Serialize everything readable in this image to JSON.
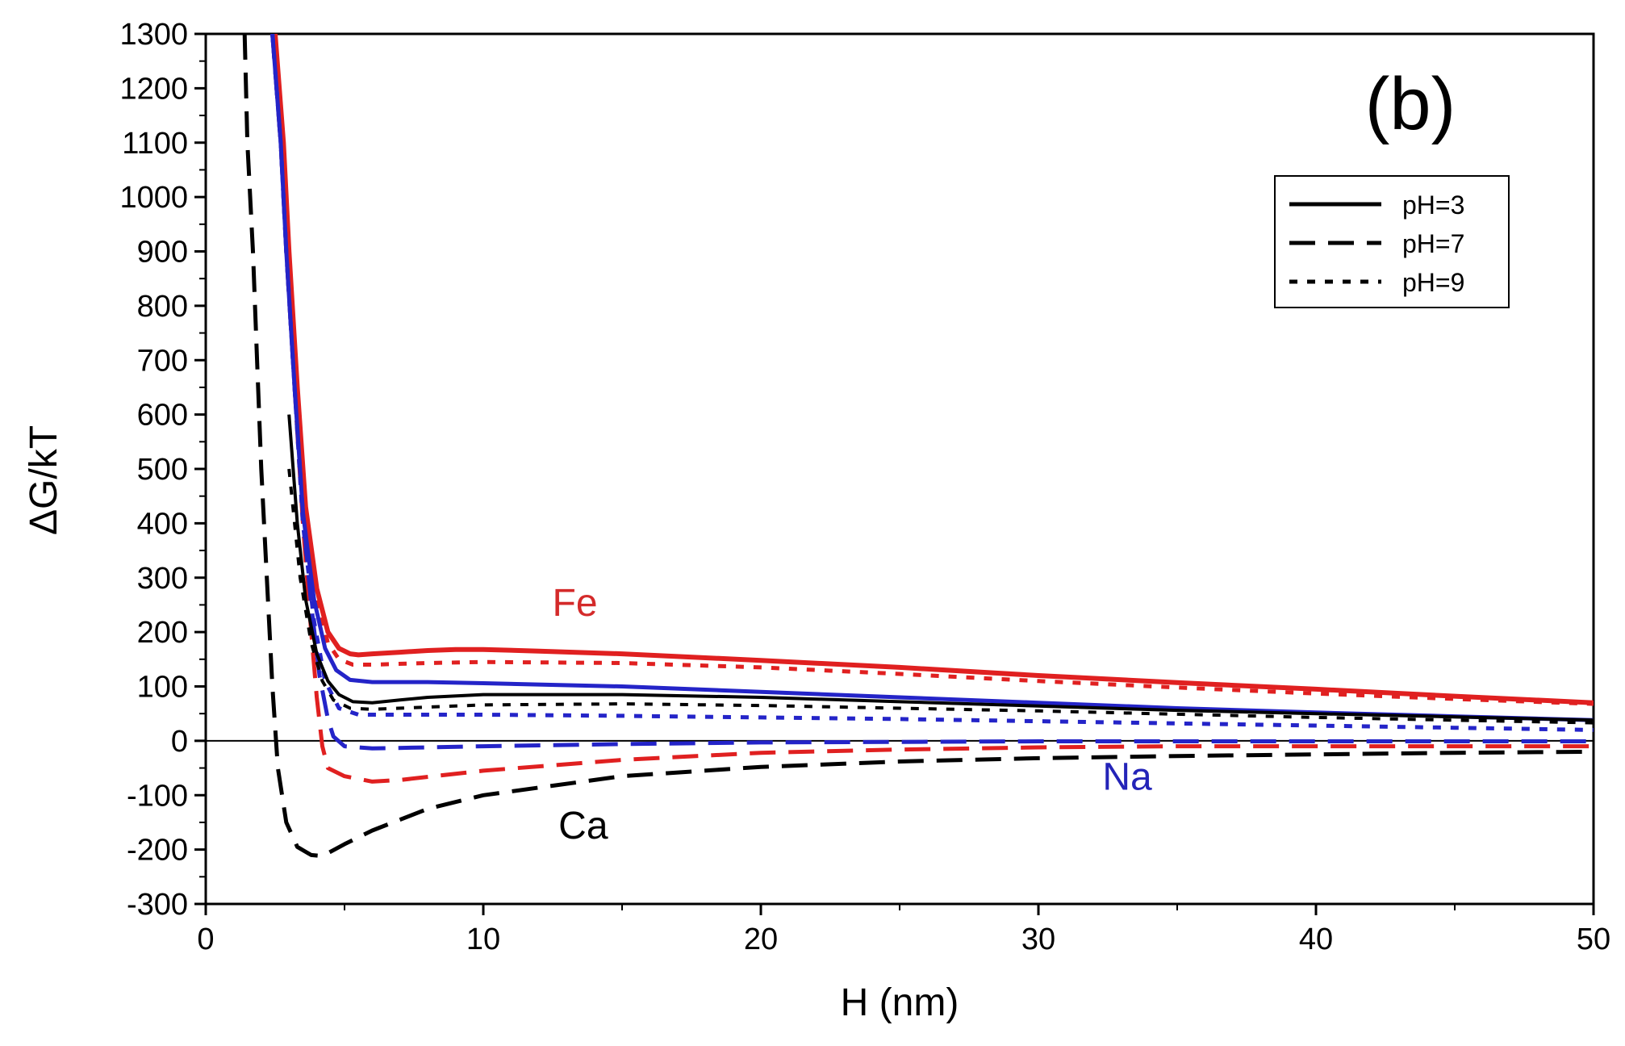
{
  "chart_data": {
    "type": "line",
    "title": "",
    "panel_label": "(b)",
    "xlabel": "H (nm)",
    "ylabel": "ΔG/kT",
    "xlim": [
      0,
      50
    ],
    "ylim": [
      -300,
      1300
    ],
    "x_ticks": [
      0,
      10,
      20,
      30,
      40,
      50
    ],
    "y_ticks": [
      -300,
      -200,
      -100,
      0,
      100,
      200,
      300,
      400,
      500,
      600,
      700,
      800,
      900,
      1000,
      1100,
      1200,
      1300
    ],
    "x_tick_labels": [
      "0",
      "10",
      "20",
      "30",
      "40",
      "50"
    ],
    "y_tick_labels": [
      "-300",
      "-200",
      "-100",
      "0",
      "100",
      "200",
      "300",
      "400",
      "500",
      "600",
      "700",
      "800",
      "900",
      "1000",
      "1100",
      "1200",
      "1300"
    ],
    "grid": false,
    "zero_line": true,
    "legend": {
      "placement": "top-right",
      "entries": [
        {
          "label": "pH=3",
          "style": "solid"
        },
        {
          "label": "pH=7",
          "style": "dashed"
        },
        {
          "label": "pH=9",
          "style": "dotted"
        }
      ]
    },
    "annotations": [
      {
        "text": "Fe",
        "color": "#d42a2a",
        "x": 13.3,
        "y": 230
      },
      {
        "text": "Na",
        "color": "#2424b8",
        "x": 33.2,
        "y": -90
      },
      {
        "text": "Ca",
        "color": "#000000",
        "x": 13.6,
        "y": -180
      }
    ],
    "series": [
      {
        "name": "Fe pH=3",
        "ion": "Fe",
        "ph": "pH=3",
        "style": "solid",
        "color": "#e02020",
        "width": 6,
        "points": [
          [
            2.5,
            1300
          ],
          [
            2.8,
            1100
          ],
          [
            3.0,
            900
          ],
          [
            3.3,
            650
          ],
          [
            3.6,
            430
          ],
          [
            4.0,
            280
          ],
          [
            4.4,
            200
          ],
          [
            4.8,
            170
          ],
          [
            5.2,
            160
          ],
          [
            5.5,
            158
          ],
          [
            6,
            160
          ],
          [
            7,
            163
          ],
          [
            8,
            166
          ],
          [
            9,
            168
          ],
          [
            10,
            168
          ],
          [
            12,
            165
          ],
          [
            15,
            160
          ],
          [
            20,
            148
          ],
          [
            25,
            135
          ],
          [
            30,
            120
          ],
          [
            35,
            107
          ],
          [
            40,
            95
          ],
          [
            45,
            82
          ],
          [
            50,
            70
          ]
        ]
      },
      {
        "name": "Fe pH=7",
        "ion": "Fe",
        "ph": "pH=7",
        "style": "dashed",
        "color": "#e02020",
        "width": 5,
        "points": [
          [
            2.4,
            1300
          ],
          [
            2.7,
            1100
          ],
          [
            2.9,
            900
          ],
          [
            3.2,
            650
          ],
          [
            3.5,
            400
          ],
          [
            3.8,
            200
          ],
          [
            4.0,
            80
          ],
          [
            4.2,
            -10
          ],
          [
            4.4,
            -50
          ],
          [
            5,
            -65
          ],
          [
            6,
            -75
          ],
          [
            7,
            -72
          ],
          [
            10,
            -55
          ],
          [
            15,
            -35
          ],
          [
            20,
            -22
          ],
          [
            25,
            -16
          ],
          [
            30,
            -12
          ],
          [
            35,
            -10
          ],
          [
            40,
            -10
          ],
          [
            45,
            -10
          ],
          [
            50,
            -10
          ]
        ]
      },
      {
        "name": "Fe pH=9",
        "ion": "Fe",
        "ph": "pH=9",
        "style": "dotted",
        "color": "#e02020",
        "width": 5,
        "points": [
          [
            2.5,
            1300
          ],
          [
            2.8,
            1100
          ],
          [
            3.0,
            900
          ],
          [
            3.3,
            650
          ],
          [
            3.6,
            420
          ],
          [
            4.0,
            260
          ],
          [
            4.4,
            180
          ],
          [
            4.8,
            150
          ],
          [
            5.3,
            140
          ],
          [
            6,
            140
          ],
          [
            8,
            143
          ],
          [
            10,
            145
          ],
          [
            15,
            143
          ],
          [
            20,
            135
          ],
          [
            25,
            123
          ],
          [
            30,
            110
          ],
          [
            35,
            98
          ],
          [
            40,
            87
          ],
          [
            45,
            77
          ],
          [
            50,
            68
          ]
        ]
      },
      {
        "name": "Na pH=3",
        "ion": "Na",
        "ph": "pH=3",
        "style": "solid",
        "color": "#2424c8",
        "width": 5,
        "points": [
          [
            2.4,
            1300
          ],
          [
            2.7,
            1100
          ],
          [
            2.9,
            900
          ],
          [
            3.2,
            650
          ],
          [
            3.5,
            420
          ],
          [
            3.9,
            260
          ],
          [
            4.3,
            170
          ],
          [
            4.7,
            130
          ],
          [
            5.2,
            112
          ],
          [
            6,
            108
          ],
          [
            7,
            108
          ],
          [
            8,
            108
          ],
          [
            10,
            106
          ],
          [
            15,
            100
          ],
          [
            20,
            90
          ],
          [
            25,
            80
          ],
          [
            30,
            70
          ],
          [
            35,
            60
          ],
          [
            40,
            52
          ],
          [
            45,
            45
          ],
          [
            50,
            38
          ]
        ]
      },
      {
        "name": "Na pH=7",
        "ion": "Na",
        "ph": "pH=7",
        "style": "dashed",
        "color": "#2424c8",
        "width": 5,
        "points": [
          [
            2.4,
            1300
          ],
          [
            2.7,
            1100
          ],
          [
            2.9,
            900
          ],
          [
            3.2,
            650
          ],
          [
            3.5,
            420
          ],
          [
            3.8,
            250
          ],
          [
            4.1,
            120
          ],
          [
            4.4,
            40
          ],
          [
            4.6,
            8
          ],
          [
            5,
            -10
          ],
          [
            6,
            -14
          ],
          [
            8,
            -12
          ],
          [
            10,
            -10
          ],
          [
            15,
            -6
          ],
          [
            20,
            -3
          ],
          [
            25,
            -2
          ],
          [
            30,
            -1
          ],
          [
            35,
            -1
          ],
          [
            40,
            -1
          ],
          [
            50,
            -1
          ]
        ]
      },
      {
        "name": "Na pH=9",
        "ion": "Na",
        "ph": "pH=9",
        "style": "dotted",
        "color": "#2424c8",
        "width": 5,
        "points": [
          [
            2.4,
            1300
          ],
          [
            2.7,
            1100
          ],
          [
            2.9,
            900
          ],
          [
            3.2,
            650
          ],
          [
            3.5,
            400
          ],
          [
            3.9,
            220
          ],
          [
            4.3,
            110
          ],
          [
            4.8,
            60
          ],
          [
            5.5,
            48
          ],
          [
            7,
            48
          ],
          [
            10,
            48
          ],
          [
            15,
            46
          ],
          [
            20,
            43
          ],
          [
            25,
            40
          ],
          [
            30,
            36
          ],
          [
            35,
            32
          ],
          [
            40,
            28
          ],
          [
            45,
            24
          ],
          [
            50,
            20
          ]
        ]
      },
      {
        "name": "Ca pH=3",
        "ion": "Ca",
        "ph": "pH=3",
        "style": "solid",
        "color": "#000000",
        "width": 4,
        "points": [
          [
            3.0,
            600
          ],
          [
            3.3,
            400
          ],
          [
            3.6,
            260
          ],
          [
            4.0,
            160
          ],
          [
            4.4,
            110
          ],
          [
            4.8,
            85
          ],
          [
            5.3,
            72
          ],
          [
            6,
            70
          ],
          [
            7,
            75
          ],
          [
            8,
            80
          ],
          [
            10,
            85
          ],
          [
            15,
            85
          ],
          [
            20,
            80
          ],
          [
            25,
            72
          ],
          [
            30,
            64
          ],
          [
            35,
            56
          ],
          [
            40,
            50
          ],
          [
            45,
            44
          ],
          [
            50,
            38
          ]
        ]
      },
      {
        "name": "Ca pH=7",
        "ion": "Ca",
        "ph": "pH=7",
        "style": "dashed",
        "color": "#000000",
        "width": 5,
        "points": [
          [
            1.4,
            1300
          ],
          [
            1.5,
            1100
          ],
          [
            1.7,
            900
          ],
          [
            1.85,
            700
          ],
          [
            2.0,
            500
          ],
          [
            2.2,
            300
          ],
          [
            2.4,
            100
          ],
          [
            2.6,
            -50
          ],
          [
            2.9,
            -150
          ],
          [
            3.3,
            -195
          ],
          [
            3.8,
            -210
          ],
          [
            4.2,
            -212
          ],
          [
            5,
            -190
          ],
          [
            6,
            -165
          ],
          [
            8,
            -125
          ],
          [
            10,
            -100
          ],
          [
            15,
            -65
          ],
          [
            20,
            -48
          ],
          [
            25,
            -38
          ],
          [
            30,
            -32
          ],
          [
            35,
            -28
          ],
          [
            40,
            -25
          ],
          [
            45,
            -22
          ],
          [
            50,
            -20
          ]
        ]
      },
      {
        "name": "Ca pH=9",
        "ion": "Ca",
        "ph": "pH=9",
        "style": "dotted",
        "color": "#000000",
        "width": 4,
        "points": [
          [
            3.0,
            500
          ],
          [
            3.4,
            300
          ],
          [
            3.8,
            180
          ],
          [
            4.2,
            110
          ],
          [
            4.6,
            75
          ],
          [
            5.2,
            60
          ],
          [
            6,
            58
          ],
          [
            8,
            62
          ],
          [
            10,
            66
          ],
          [
            15,
            68
          ],
          [
            20,
            65
          ],
          [
            25,
            60
          ],
          [
            30,
            55
          ],
          [
            35,
            49
          ],
          [
            40,
            43
          ],
          [
            45,
            38
          ],
          [
            50,
            33
          ]
        ]
      }
    ]
  }
}
